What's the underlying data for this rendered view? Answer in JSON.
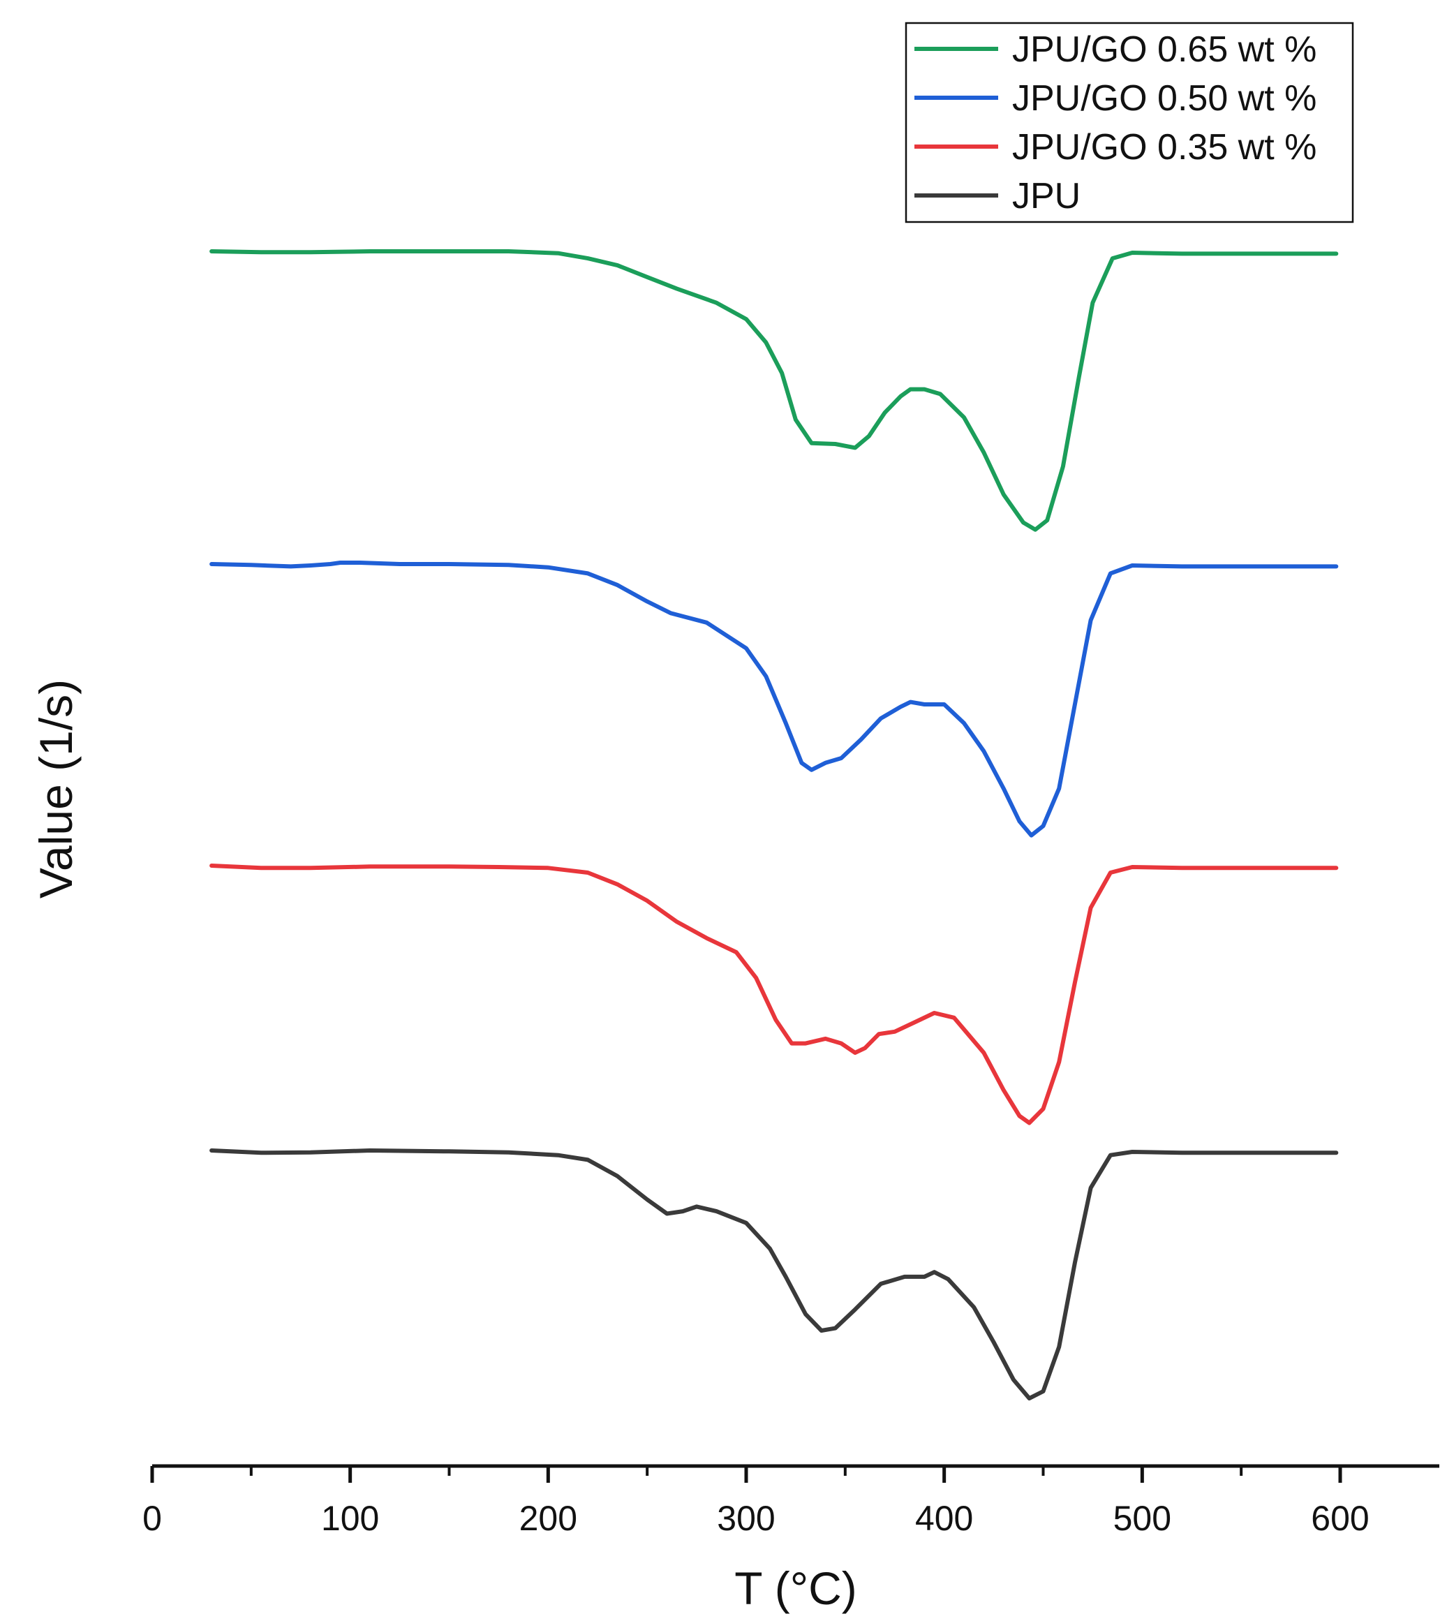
{
  "chart_data": {
    "type": "line",
    "xlabel": "T (°C)",
    "ylabel": "Value (1/s)",
    "xlim": [
      0,
      650
    ],
    "xticks": [
      0,
      100,
      200,
      300,
      400,
      500,
      600
    ],
    "legend_position": "top-right",
    "series": [
      {
        "name": "JPU/GO 0.65 wt %",
        "color": "#1b9e5a",
        "points": [
          [
            30,
            0.0
          ],
          [
            55,
            -0.02
          ],
          [
            80,
            -0.02
          ],
          [
            110,
            0.0
          ],
          [
            150,
            0.0
          ],
          [
            180,
            0.0
          ],
          [
            205,
            -0.04
          ],
          [
            220,
            -0.15
          ],
          [
            235,
            -0.3
          ],
          [
            250,
            -0.55
          ],
          [
            265,
            -0.8
          ],
          [
            285,
            -1.1
          ],
          [
            300,
            -1.45
          ],
          [
            310,
            -1.95
          ],
          [
            318,
            -2.6
          ],
          [
            325,
            -3.6
          ],
          [
            333,
            -4.1
          ],
          [
            345,
            -4.12
          ],
          [
            355,
            -4.2
          ],
          [
            362,
            -3.95
          ],
          [
            370,
            -3.45
          ],
          [
            378,
            -3.1
          ],
          [
            383,
            -2.95
          ],
          [
            390,
            -2.95
          ],
          [
            398,
            -3.05
          ],
          [
            410,
            -3.55
          ],
          [
            420,
            -4.3
          ],
          [
            430,
            -5.2
          ],
          [
            440,
            -5.8
          ],
          [
            446,
            -5.95
          ],
          [
            452,
            -5.75
          ],
          [
            460,
            -4.6
          ],
          [
            468,
            -2.7
          ],
          [
            475,
            -1.1
          ],
          [
            485,
            -0.15
          ],
          [
            495,
            -0.03
          ],
          [
            520,
            -0.05
          ],
          [
            560,
            -0.05
          ],
          [
            598,
            -0.05
          ]
        ]
      },
      {
        "name": "JPU/GO 0.50 wt %",
        "color": "#1f5fd6",
        "points": [
          [
            30,
            0.0
          ],
          [
            50,
            -0.02
          ],
          [
            70,
            -0.05
          ],
          [
            80,
            -0.03
          ],
          [
            90,
            0.0
          ],
          [
            95,
            0.03
          ],
          [
            105,
            0.03
          ],
          [
            125,
            0.0
          ],
          [
            150,
            0.0
          ],
          [
            180,
            -0.02
          ],
          [
            200,
            -0.07
          ],
          [
            220,
            -0.2
          ],
          [
            235,
            -0.45
          ],
          [
            250,
            -0.8
          ],
          [
            262,
            -1.05
          ],
          [
            280,
            -1.25
          ],
          [
            300,
            -1.8
          ],
          [
            310,
            -2.4
          ],
          [
            320,
            -3.4
          ],
          [
            328,
            -4.25
          ],
          [
            333,
            -4.4
          ],
          [
            340,
            -4.25
          ],
          [
            348,
            -4.15
          ],
          [
            358,
            -3.75
          ],
          [
            368,
            -3.3
          ],
          [
            378,
            -3.05
          ],
          [
            383,
            -2.95
          ],
          [
            390,
            -3.0
          ],
          [
            400,
            -3.0
          ],
          [
            410,
            -3.4
          ],
          [
            420,
            -4.0
          ],
          [
            430,
            -4.8
          ],
          [
            438,
            -5.5
          ],
          [
            444,
            -5.8
          ],
          [
            450,
            -5.6
          ],
          [
            458,
            -4.8
          ],
          [
            466,
            -3.0
          ],
          [
            474,
            -1.2
          ],
          [
            484,
            -0.2
          ],
          [
            495,
            -0.03
          ],
          [
            520,
            -0.05
          ],
          [
            560,
            -0.05
          ],
          [
            598,
            -0.05
          ]
        ]
      },
      {
        "name": "JPU/GO 0.35 wt %",
        "color": "#e8363b",
        "points": [
          [
            30,
            0.0
          ],
          [
            55,
            -0.05
          ],
          [
            80,
            -0.05
          ],
          [
            110,
            -0.02
          ],
          [
            150,
            -0.02
          ],
          [
            175,
            -0.03
          ],
          [
            200,
            -0.05
          ],
          [
            220,
            -0.15
          ],
          [
            235,
            -0.4
          ],
          [
            250,
            -0.75
          ],
          [
            265,
            -1.2
          ],
          [
            280,
            -1.55
          ],
          [
            295,
            -1.85
          ],
          [
            305,
            -2.4
          ],
          [
            315,
            -3.3
          ],
          [
            323,
            -3.8
          ],
          [
            330,
            -3.8
          ],
          [
            340,
            -3.7
          ],
          [
            348,
            -3.8
          ],
          [
            355,
            -4.0
          ],
          [
            360,
            -3.9
          ],
          [
            367,
            -3.6
          ],
          [
            375,
            -3.55
          ],
          [
            385,
            -3.35
          ],
          [
            395,
            -3.15
          ],
          [
            405,
            -3.25
          ],
          [
            420,
            -4.0
          ],
          [
            430,
            -4.8
          ],
          [
            438,
            -5.35
          ],
          [
            443,
            -5.5
          ],
          [
            450,
            -5.2
          ],
          [
            458,
            -4.2
          ],
          [
            466,
            -2.5
          ],
          [
            474,
            -0.9
          ],
          [
            484,
            -0.15
          ],
          [
            495,
            -0.03
          ],
          [
            520,
            -0.05
          ],
          [
            560,
            -0.05
          ],
          [
            598,
            -0.05
          ]
        ]
      },
      {
        "name": "JPU",
        "color": "#3a3a3a",
        "points": [
          [
            30,
            0.0
          ],
          [
            55,
            -0.05
          ],
          [
            80,
            -0.04
          ],
          [
            110,
            0.0
          ],
          [
            150,
            -0.02
          ],
          [
            180,
            -0.04
          ],
          [
            205,
            -0.1
          ],
          [
            220,
            -0.2
          ],
          [
            235,
            -0.55
          ],
          [
            250,
            -1.05
          ],
          [
            260,
            -1.35
          ],
          [
            268,
            -1.3
          ],
          [
            275,
            -1.2
          ],
          [
            285,
            -1.3
          ],
          [
            300,
            -1.55
          ],
          [
            312,
            -2.1
          ],
          [
            320,
            -2.7
          ],
          [
            330,
            -3.5
          ],
          [
            338,
            -3.85
          ],
          [
            345,
            -3.8
          ],
          [
            355,
            -3.4
          ],
          [
            368,
            -2.85
          ],
          [
            380,
            -2.7
          ],
          [
            390,
            -2.7
          ],
          [
            395,
            -2.6
          ],
          [
            402,
            -2.75
          ],
          [
            415,
            -3.35
          ],
          [
            425,
            -4.1
          ],
          [
            435,
            -4.9
          ],
          [
            443,
            -5.3
          ],
          [
            450,
            -5.15
          ],
          [
            458,
            -4.2
          ],
          [
            466,
            -2.4
          ],
          [
            474,
            -0.8
          ],
          [
            484,
            -0.1
          ],
          [
            495,
            -0.03
          ],
          [
            520,
            -0.05
          ],
          [
            560,
            -0.05
          ],
          [
            598,
            -0.05
          ]
        ]
      }
    ]
  }
}
